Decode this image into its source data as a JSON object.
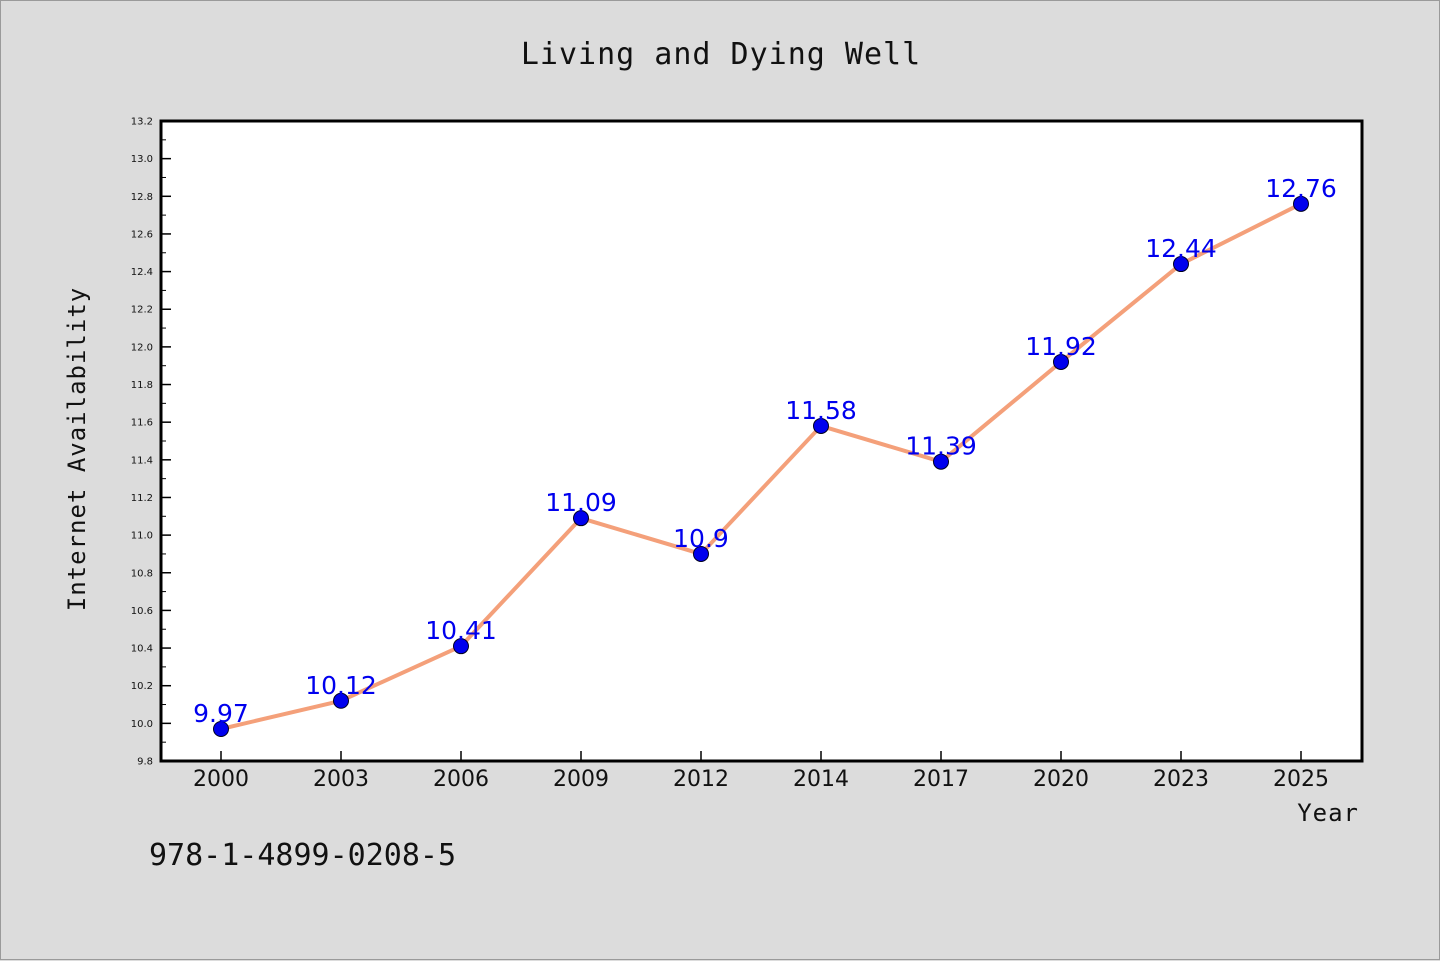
{
  "chart_data": {
    "type": "line",
    "title": "Living and Dying Well",
    "xlabel": "Year",
    "ylabel": "Internet Availability",
    "categories": [
      "2000",
      "2003",
      "2006",
      "2009",
      "2012",
      "2014",
      "2017",
      "2020",
      "2023",
      "2025"
    ],
    "series": [
      {
        "values": [
          9.97,
          10.12,
          10.41,
          11.09,
          10.9,
          11.58,
          11.39,
          11.92,
          12.44,
          12.76
        ],
        "labels": [
          "9.97",
          "10.12",
          "10.41",
          "11.09",
          "10.9",
          "11.58",
          "11.39",
          "11.92",
          "12.44",
          "12.76"
        ],
        "line_color": "#f4a07a",
        "marker_color": "#0000ee"
      }
    ],
    "ylim": [
      9.8,
      13.2
    ],
    "yticks": [
      "9.8",
      "10.0",
      "10.2",
      "10.4",
      "10.6",
      "10.8",
      "11.0",
      "11.2",
      "11.4",
      "11.6",
      "11.8",
      "12.0",
      "12.2",
      "12.4",
      "12.6",
      "12.8",
      "13.0",
      "13.2"
    ],
    "grid": false,
    "legend": "none"
  },
  "footnote": "978-1-4899-0208-5",
  "colors": {
    "background": "#dcdcdc",
    "plot_background": "#ffffff",
    "axis": "#000000"
  }
}
